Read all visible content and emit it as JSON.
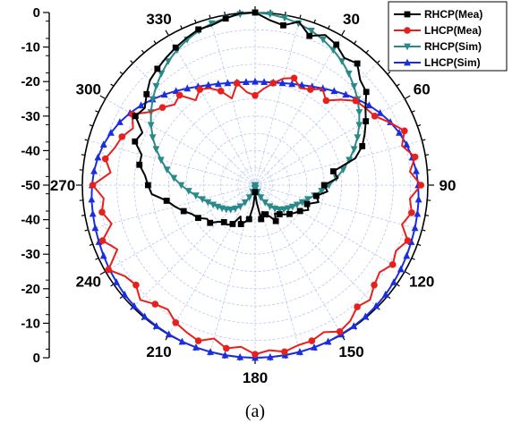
{
  "chart_data": {
    "type": "polar-line",
    "caption": "(a)",
    "angle_ticks": [
      "0",
      "30",
      "60",
      "90",
      "120",
      "150",
      "180",
      "210",
      "240",
      "270",
      "300",
      "330"
    ],
    "radial_ticks_top": [
      "0",
      "-10",
      "-20",
      "-30",
      "-40",
      "-50"
    ],
    "radial_ticks_bottom": [
      "-40",
      "-30",
      "-20",
      "-10",
      "0"
    ],
    "rlim": [
      -50,
      0
    ],
    "grid": true,
    "legend_position": "top-right",
    "series": [
      {
        "name": "RHCP(Mea)",
        "color": "#000000",
        "marker": "square",
        "angles": [
          0,
          5,
          10,
          15,
          20,
          25,
          30,
          35,
          40,
          45,
          50,
          55,
          60,
          65,
          70,
          75,
          80,
          85,
          90,
          95,
          100,
          105,
          110,
          115,
          120,
          125,
          130,
          135,
          140,
          145,
          150,
          155,
          160,
          165,
          170,
          175,
          180,
          185,
          190,
          195,
          200,
          205,
          210,
          215,
          220,
          225,
          230,
          235,
          240,
          245,
          250,
          255,
          260,
          265,
          270,
          275,
          280,
          285,
          290,
          295,
          300,
          305,
          310,
          315,
          320,
          325,
          330,
          335,
          340,
          345,
          350,
          355
        ],
        "values": [
          0,
          -2,
          -3,
          -1,
          -4,
          -2,
          -3,
          -5,
          -4,
          -7,
          -8,
          -11,
          -13,
          -15,
          -17,
          -20,
          -27,
          -26,
          -30,
          -29,
          -32,
          -31,
          -34,
          -33,
          -35,
          -36,
          -37,
          -38,
          -39,
          -40,
          -38,
          -40,
          -41,
          -42,
          -40,
          -45,
          -48,
          -44,
          -40,
          -39,
          -38,
          -40,
          -37,
          -36,
          -36,
          -35,
          -33,
          -33,
          -31,
          -30,
          -28,
          -26,
          -24,
          -20,
          -19,
          -18,
          -16,
          -16,
          -13,
          -14,
          -10,
          -11,
          -9,
          -7,
          -6,
          -5,
          -4,
          -3,
          -2,
          -2,
          -1,
          0
        ]
      },
      {
        "name": "LHCP(Mea)",
        "color": "#e8201c",
        "marker": "circle",
        "angles": [
          0,
          5,
          10,
          15,
          20,
          25,
          30,
          35,
          40,
          45,
          50,
          55,
          60,
          65,
          70,
          75,
          80,
          85,
          90,
          95,
          100,
          105,
          110,
          115,
          120,
          125,
          130,
          135,
          140,
          145,
          150,
          155,
          160,
          165,
          170,
          175,
          180,
          185,
          190,
          195,
          200,
          205,
          210,
          215,
          220,
          225,
          230,
          235,
          240,
          245,
          250,
          255,
          260,
          265,
          270,
          275,
          280,
          285,
          290,
          295,
          300,
          305,
          310,
          315,
          320,
          325,
          330,
          335,
          340,
          345,
          350,
          355
        ],
        "values": [
          -24,
          -22,
          -20,
          -18,
          -17,
          -19,
          -18,
          -16,
          -18,
          -15,
          -12,
          -11,
          -10,
          -7,
          -4,
          -6,
          -3,
          -5,
          -2,
          -5,
          -4,
          -6,
          -3,
          -5,
          -4,
          -6,
          -5,
          -3,
          -4,
          -2,
          -1,
          -3,
          -2,
          -2,
          -1,
          -2,
          -1,
          -3,
          -2,
          -4,
          -2,
          -3,
          -4,
          -6,
          -5,
          -3,
          -5,
          -4,
          -1,
          -6,
          -3,
          -7,
          -5,
          -6,
          -3,
          -8,
          -6,
          -8,
          -9,
          -11,
          -9,
          -13,
          -15,
          -17,
          -16,
          -20,
          -18,
          -19,
          -21,
          -24,
          -20,
          -23
        ]
      },
      {
        "name": "RHCP(Sim)",
        "color": "#2a8a88",
        "marker": "triangle-down",
        "angles": [
          0,
          5,
          10,
          15,
          20,
          25,
          30,
          35,
          40,
          45,
          50,
          55,
          60,
          65,
          70,
          75,
          80,
          85,
          90,
          95,
          100,
          105,
          110,
          115,
          120,
          125,
          130,
          135,
          140,
          145,
          150,
          155,
          160,
          165,
          170,
          175,
          180,
          185,
          190,
          195,
          200,
          205,
          210,
          215,
          220,
          225,
          230,
          235,
          240,
          245,
          250,
          255,
          260,
          265,
          270,
          275,
          280,
          285,
          290,
          295,
          300,
          305,
          310,
          315,
          320,
          325,
          330,
          335,
          340,
          345,
          350,
          355
        ],
        "values": [
          0,
          -0.3,
          -0.8,
          -1.5,
          -2.4,
          -3.5,
          -4.8,
          -6.2,
          -7.8,
          -9.5,
          -11.3,
          -13.2,
          -15.2,
          -17.3,
          -19.5,
          -21.8,
          -24.1,
          -26.4,
          -28.6,
          -30.7,
          -32.6,
          -34.2,
          -35.5,
          -36.6,
          -37.5,
          -38.3,
          -39.1,
          -40,
          -41.1,
          -42.5,
          -44.2,
          -46.1,
          -47.9,
          -49.2,
          -49.8,
          -50,
          -50,
          -50,
          -49.8,
          -49.2,
          -47.9,
          -46.1,
          -44.2,
          -42.5,
          -41.1,
          -40,
          -39.1,
          -38.3,
          -37.5,
          -36.6,
          -35.5,
          -34.2,
          -32.6,
          -30.7,
          -28.6,
          -26.4,
          -24.1,
          -21.8,
          -19.5,
          -17.3,
          -15.2,
          -13.2,
          -11.3,
          -9.5,
          -7.8,
          -6.2,
          -4.8,
          -3.5,
          -2.4,
          -1.5,
          -0.8,
          -0.3
        ]
      },
      {
        "name": "LHCP(Sim)",
        "color": "#1a2ee0",
        "marker": "triangle-up",
        "angles": [
          0,
          5,
          10,
          15,
          20,
          25,
          30,
          35,
          40,
          45,
          50,
          55,
          60,
          65,
          70,
          75,
          80,
          85,
          90,
          95,
          100,
          105,
          110,
          115,
          120,
          125,
          130,
          135,
          140,
          145,
          150,
          155,
          160,
          165,
          170,
          175,
          180,
          185,
          190,
          195,
          200,
          205,
          210,
          215,
          220,
          225,
          230,
          235,
          240,
          245,
          250,
          255,
          260,
          265,
          270,
          275,
          280,
          285,
          290,
          295,
          300,
          305,
          310,
          315,
          320,
          325,
          330,
          335,
          340,
          345,
          350,
          355
        ],
        "values": [
          -20,
          -20,
          -19.8,
          -19.4,
          -18.8,
          -18,
          -17,
          -15.8,
          -14.4,
          -12.9,
          -11.3,
          -9.7,
          -8.2,
          -6.8,
          -5.6,
          -4.6,
          -3.8,
          -3.2,
          -2.8,
          -2.5,
          -2.3,
          -2.1,
          -1.9,
          -1.6,
          -1.3,
          -1,
          -0.7,
          -0.5,
          -0.3,
          -0.2,
          -0.1,
          0,
          0,
          0,
          0,
          0,
          0,
          0,
          0,
          0,
          0,
          0,
          -0.1,
          -0.2,
          -0.3,
          -0.5,
          -0.7,
          -1,
          -1.3,
          -1.6,
          -1.9,
          -2.1,
          -2.3,
          -2.5,
          -2.8,
          -3.2,
          -3.8,
          -4.6,
          -5.6,
          -6.8,
          -8.2,
          -9.7,
          -11.3,
          -12.9,
          -14.4,
          -15.8,
          -17,
          -18,
          -18.8,
          -19.4,
          -19.8,
          -20
        ]
      }
    ]
  }
}
